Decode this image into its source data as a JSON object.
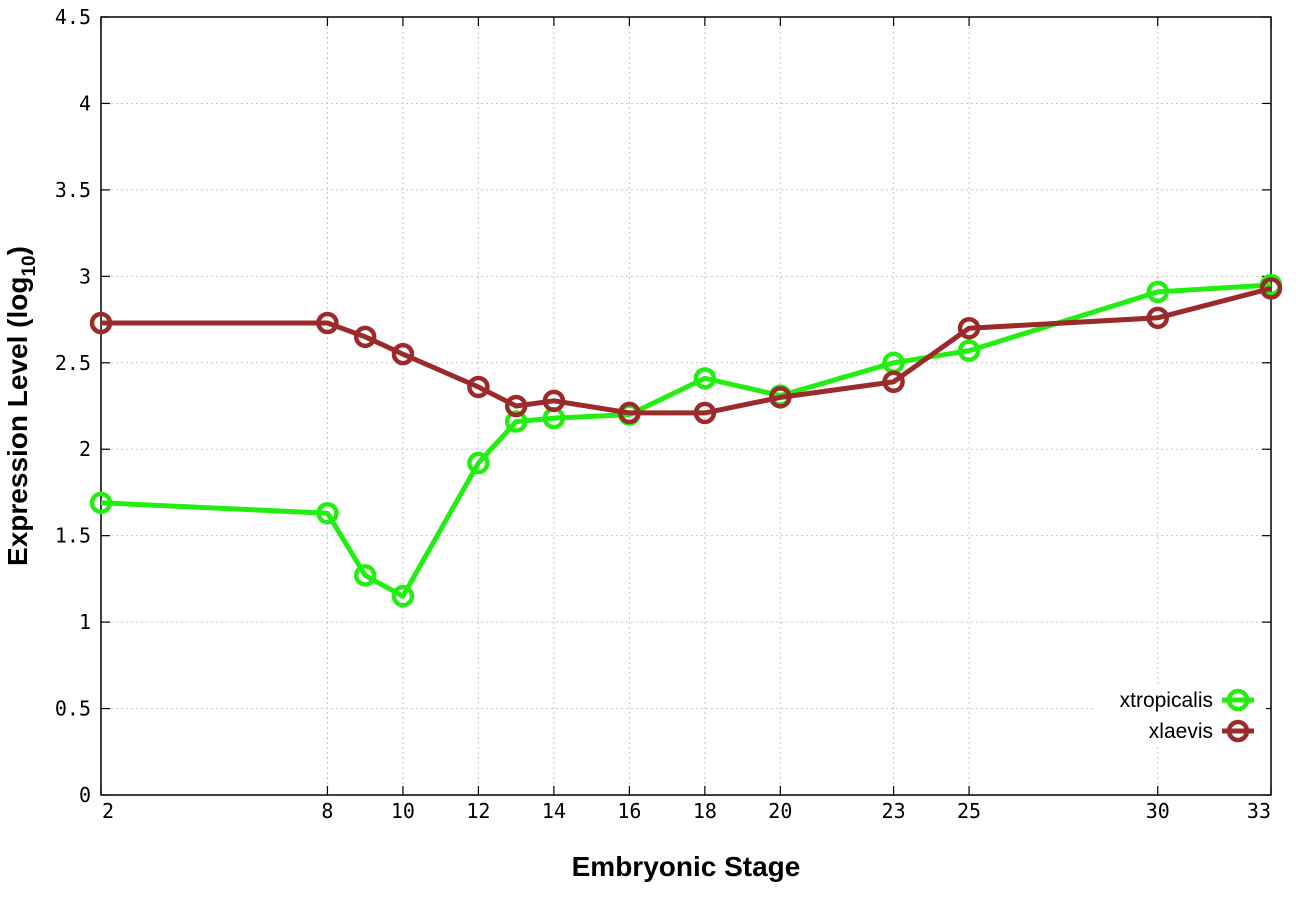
{
  "chart_data": {
    "type": "line",
    "xlabel": "Embryonic Stage",
    "ylabel_main": "Expression Level (log",
    "ylabel_sub": "10",
    "ylabel_close": ")",
    "ylim": [
      0,
      4.5
    ],
    "xlim": [
      2,
      33
    ],
    "x_ticks": [
      2,
      8,
      10,
      12,
      14,
      16,
      18,
      20,
      23,
      25,
      30,
      33
    ],
    "y_ticks": [
      "0",
      "0.5",
      "1",
      "1.5",
      "2",
      "2.5",
      "3",
      "3.5",
      "4",
      "4.5"
    ],
    "grid": true,
    "legend_position": "bottom-right",
    "series": [
      {
        "name": "xtropicalis",
        "color": "#22ee11",
        "x": [
          2,
          8,
          9,
          10,
          12,
          13,
          14,
          16,
          18,
          20,
          23,
          25,
          30,
          33
        ],
        "values": [
          1.69,
          1.63,
          1.27,
          1.15,
          1.92,
          2.16,
          2.18,
          2.2,
          2.41,
          2.31,
          2.5,
          2.57,
          2.91,
          2.95
        ]
      },
      {
        "name": "xlaevis",
        "color": "#9b2a2a",
        "x": [
          2,
          8,
          9,
          10,
          12,
          13,
          14,
          16,
          18,
          20,
          23,
          25,
          30,
          33
        ],
        "values": [
          2.73,
          2.73,
          2.65,
          2.55,
          2.36,
          2.25,
          2.28,
          2.21,
          2.21,
          2.3,
          2.39,
          2.7,
          2.76,
          2.93
        ]
      }
    ]
  }
}
